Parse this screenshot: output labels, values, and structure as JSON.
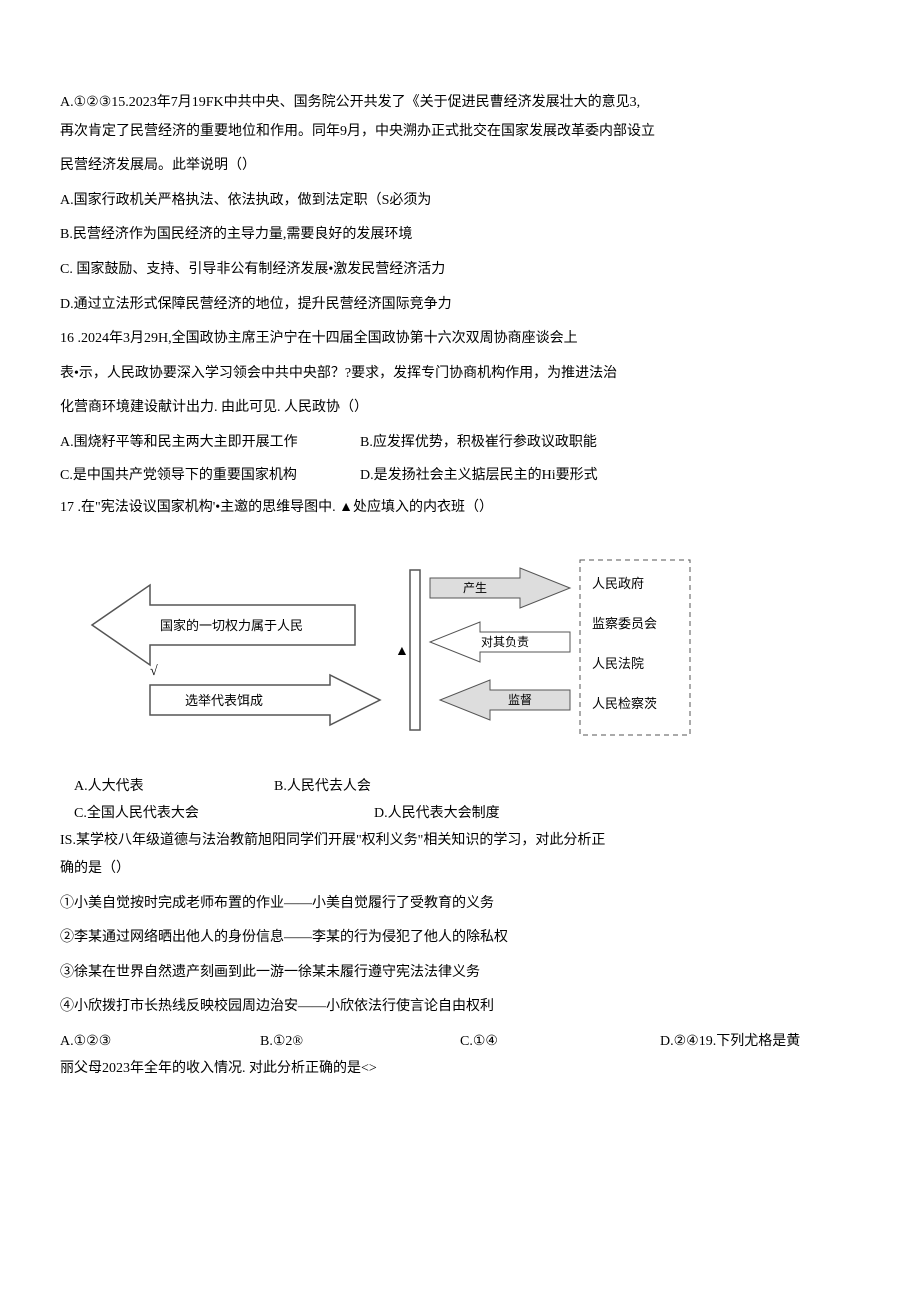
{
  "q14_tail": {
    "line1": "A.①②③15.2023年7月19FK中共中央、国务院公开共发了《关于促进民曹经济发展壮大的意见3,",
    "line2": "再次肯定了民营经济的重要地位和作用。同年9月，中央溯办正式批交在国家发展改革委内部设立",
    "line3": "民营经济发展局。此举说明（）",
    "optA": "A.国家行政机关严格执法、依法执政，做到法定职（S必须为",
    "optB": "B.民营经济作为国民经济的主导力量,需要良好的发展环境",
    "optC": "C. 国家鼓励、支持、引导非公有制经济发展•激发民营经济活力",
    "optD": "D.通过立法形式保障民营经济的地位，提升民营经济国际竞争力"
  },
  "q16": {
    "line1": "16 .2024年3月29H,全国政协主席王沪宁在十四届全国政协第十六次双周协商座谈会上",
    "line2": "表•示，人民政协要深入学习领会中共中央部？?要求，发挥专门协商机构作用，为推进法治",
    "line3": "化营商环境建设献计出力. 由此可见. 人民政协（）",
    "optA": "A.围烧籽平等和民主两大主即开展工作",
    "optB": "B.应发挥优势，积极崔行参政议政职能",
    "optC": "C.是中国共产党领导下的重要国家机构",
    "optD": "D.是发扬社会主义掂层民主的Hi要形式"
  },
  "q17": {
    "stem": "17 .在\"宪法设议国家机构'•主邀的思维导图中. ▲处应填入的内衣班（）",
    "optA": "A.人大代表",
    "optB": "B.人民代去人会",
    "optC": "C.全国人民代表大会",
    "optD": "D.人民代表大会制度"
  },
  "diagram": {
    "left_arrow_text": "国家的一切权力属于人民",
    "left_bottom_text": "选举代表饵成",
    "center_marker": "▲",
    "mid_top": "产生",
    "mid_mid": "对其负责",
    "mid_bot": "监督",
    "right_items": [
      "人民政府",
      "监察委员会",
      "人民法院",
      "人民检察茨"
    ],
    "colors": {
      "stroke": "#555555",
      "fill_arrow": "#dddddd",
      "text": "#000000",
      "bg": "#ffffff"
    },
    "fontsize_box": 13,
    "fontsize_small": 12
  },
  "q18": {
    "line1": "IS.某学校八年级道德与法治教箭旭阳同学们开展\"权利义务\"相关知识的学习，对此分析正",
    "line2": "确的是（）",
    "s1": "①小美自觉按时完成老师布置的作业——小美自觉履行了受教育的义务",
    "s2": "②李某通过网络晒出他人的身份信息——李某的行为侵犯了他人的除私权",
    "s3": "③徐某在世界自然遗产刻画到此一游一徐某未履行遵守宪法法律义务",
    "s4": "④小欣拨打市长热线反映校园周边治安——小欣依法行使言论自由权利",
    "optA": "A.①②③",
    "optB": "B.①2®",
    "optC": "C.①④",
    "optD": "D.②④19.下列尤格是黄",
    "tail": "丽父母2023年全年的收入情况. 对此分析正确的是<>"
  }
}
